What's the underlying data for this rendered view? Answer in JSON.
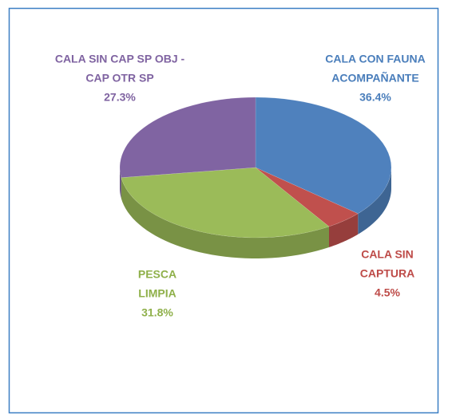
{
  "chart_data": {
    "type": "pie",
    "categories": [
      [
        "CALA CON FAUNA",
        "ACOMPAÑANTE"
      ],
      [
        "CALA SIN",
        "CAPTURA"
      ],
      [
        "PESCA",
        "LIMPIA"
      ],
      [
        "CALA SIN CAP SP OBJ -",
        "CAP OTR SP"
      ]
    ],
    "values": [
      36.4,
      4.5,
      31.8,
      27.3
    ],
    "value_labels": [
      "36.4%",
      "4.5%",
      "31.8%",
      "27.3%"
    ],
    "colors": [
      "#4f81bd",
      "#c0504d",
      "#9bbb59",
      "#8064a2"
    ],
    "label_colors": [
      "#4a7ebb",
      "#be4b48",
      "#8fb04a",
      "#7f63a1"
    ]
  }
}
